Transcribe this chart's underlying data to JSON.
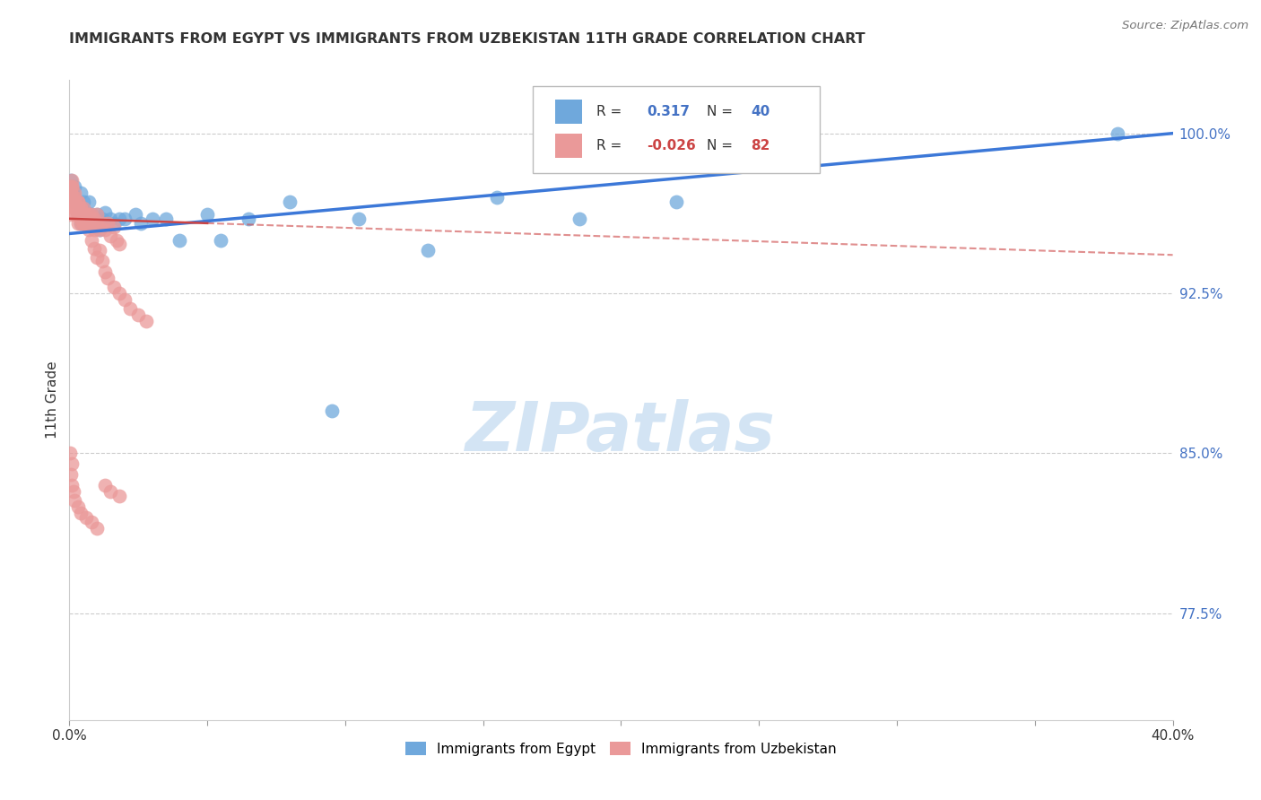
{
  "title": "IMMIGRANTS FROM EGYPT VS IMMIGRANTS FROM UZBEKISTAN 11TH GRADE CORRELATION CHART",
  "source": "Source: ZipAtlas.com",
  "ylabel": "11th Grade",
  "ytick_labels": [
    "100.0%",
    "92.5%",
    "85.0%",
    "77.5%"
  ],
  "ytick_values": [
    1.0,
    0.925,
    0.85,
    0.775
  ],
  "xmin": 0.0,
  "xmax": 0.4,
  "ymin": 0.725,
  "ymax": 1.025,
  "color_egypt": "#6fa8dc",
  "color_uzbekistan": "#ea9999",
  "color_line_egypt": "#3c78d8",
  "color_line_uzbekistan": "#cc4444",
  "watermark_color": "#cfe2f3",
  "egypt_x": [
    0.0005,
    0.001,
    0.0015,
    0.002,
    0.002,
    0.003,
    0.003,
    0.004,
    0.004,
    0.005,
    0.005,
    0.006,
    0.007,
    0.007,
    0.008,
    0.009,
    0.01,
    0.011,
    0.012,
    0.013,
    0.015,
    0.016,
    0.018,
    0.02,
    0.024,
    0.026,
    0.03,
    0.035,
    0.04,
    0.05,
    0.055,
    0.065,
    0.08,
    0.095,
    0.105,
    0.13,
    0.155,
    0.185,
    0.22,
    0.38
  ],
  "egypt_y": [
    0.978,
    0.972,
    0.971,
    0.975,
    0.968,
    0.968,
    0.962,
    0.972,
    0.958,
    0.962,
    0.968,
    0.963,
    0.968,
    0.958,
    0.962,
    0.958,
    0.962,
    0.955,
    0.96,
    0.963,
    0.96,
    0.958,
    0.96,
    0.96,
    0.962,
    0.958,
    0.96,
    0.96,
    0.95,
    0.962,
    0.95,
    0.96,
    0.968,
    0.87,
    0.96,
    0.945,
    0.97,
    0.96,
    0.968,
    1.0
  ],
  "uzbekistan_x": [
    0.0002,
    0.0004,
    0.0006,
    0.0008,
    0.001,
    0.001,
    0.001,
    0.0015,
    0.002,
    0.002,
    0.002,
    0.002,
    0.003,
    0.003,
    0.003,
    0.003,
    0.004,
    0.004,
    0.004,
    0.005,
    0.005,
    0.005,
    0.006,
    0.006,
    0.007,
    0.007,
    0.008,
    0.008,
    0.009,
    0.009,
    0.01,
    0.01,
    0.011,
    0.012,
    0.013,
    0.014,
    0.015,
    0.016,
    0.017,
    0.018,
    0.0002,
    0.0005,
    0.001,
    0.001,
    0.0015,
    0.002,
    0.002,
    0.003,
    0.003,
    0.004,
    0.004,
    0.005,
    0.005,
    0.006,
    0.007,
    0.008,
    0.009,
    0.01,
    0.011,
    0.012,
    0.013,
    0.014,
    0.016,
    0.018,
    0.02,
    0.022,
    0.025,
    0.028,
    0.0005,
    0.001,
    0.0015,
    0.002,
    0.003,
    0.004,
    0.006,
    0.008,
    0.01,
    0.013,
    0.015,
    0.018,
    0.0003,
    0.001
  ],
  "uzbekistan_y": [
    0.962,
    0.968,
    0.972,
    0.968,
    0.978,
    0.975,
    0.97,
    0.968,
    0.972,
    0.968,
    0.965,
    0.962,
    0.968,
    0.965,
    0.962,
    0.958,
    0.965,
    0.962,
    0.958,
    0.965,
    0.962,
    0.958,
    0.962,
    0.958,
    0.962,
    0.958,
    0.962,
    0.958,
    0.96,
    0.955,
    0.962,
    0.958,
    0.955,
    0.958,
    0.955,
    0.958,
    0.952,
    0.956,
    0.95,
    0.948,
    0.975,
    0.972,
    0.975,
    0.97,
    0.968,
    0.97,
    0.965,
    0.968,
    0.962,
    0.965,
    0.96,
    0.962,
    0.958,
    0.958,
    0.955,
    0.95,
    0.946,
    0.942,
    0.945,
    0.94,
    0.935,
    0.932,
    0.928,
    0.925,
    0.922,
    0.918,
    0.915,
    0.912,
    0.84,
    0.835,
    0.832,
    0.828,
    0.825,
    0.822,
    0.82,
    0.818,
    0.815,
    0.835,
    0.832,
    0.83,
    0.85,
    0.845
  ]
}
